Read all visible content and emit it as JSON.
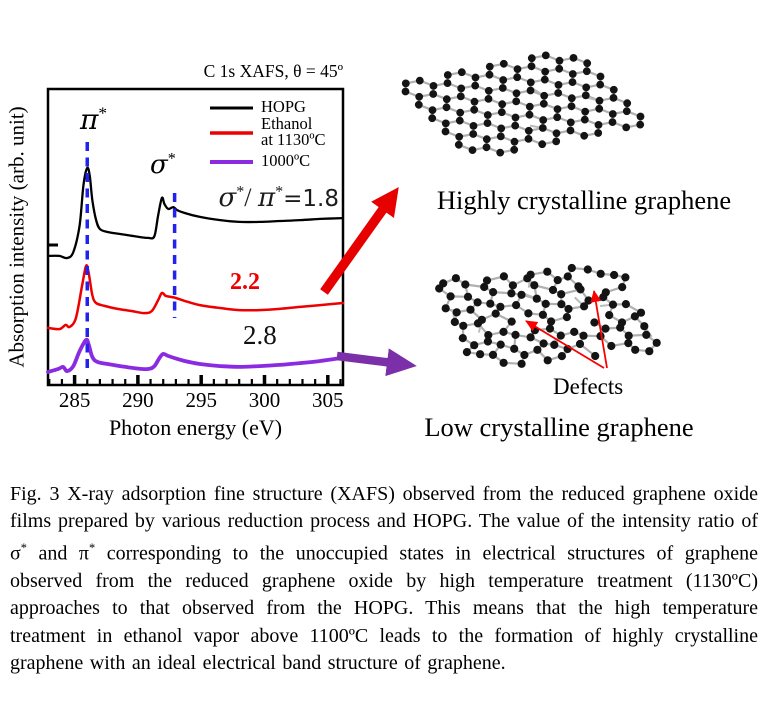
{
  "figure": {
    "colors": {
      "hopg": "#000000",
      "ethanol": "#ee0000",
      "low_temp": "#8a2be2",
      "guide_blue": "#2222ee",
      "arrow_red": "#e60000",
      "arrow_purple": "#7b2fa8",
      "defect_arrow": "#fa0000",
      "bond": "#b0b0b0",
      "atom": "#141414"
    },
    "plot": {
      "title": "C 1s XAFS, θ = 45º",
      "x_label": "Photon energy (eV)",
      "y_label": "Absorption intensity (arb. unit)",
      "legend": [
        {
          "label": "HOPG"
        },
        {
          "label": "Ethanol",
          "label2": "at 1130ºC"
        },
        {
          "label": "1000ºC"
        }
      ],
      "ann": {
        "pi": "π",
        "sigma": "σ",
        "star": "*",
        "slash": "/ ",
        "eq_value": "=1.8",
        "ratio_ethanol": "2.2",
        "ratio_1000": "2.8"
      }
    },
    "images": {
      "high": {
        "label": "Highly crystalline graphene"
      },
      "low": {
        "label": "Low crystalline graphene",
        "defects_label": "Defects"
      }
    }
  },
  "chart_data": {
    "type": "line",
    "title": "C 1s XAFS, θ = 45º",
    "xlabel": "Photon energy (eV)",
    "ylabel": "Absorption intensity (arb. unit)",
    "xlim": [
      282.9,
      306.2
    ],
    "x_ticks": [
      285,
      290,
      295,
      300,
      305
    ],
    "grid": false,
    "legend_position": "inside top-right",
    "y_units": "arbitrary units, curves vertically offset",
    "dashed_guides_eV": [
      286.0,
      292.9
    ],
    "peak_labels": {
      "pi_star_eV": 286.0,
      "sigma_star_eV": 292.9
    },
    "series": [
      {
        "name": "HOPG",
        "color": "#000000",
        "sigma_pi_ratio": 1.8,
        "x": [
          282.9,
          283.8,
          284.4,
          284.9,
          285.4,
          285.7,
          286.0,
          286.2,
          286.4,
          286.7,
          287.0,
          287.6,
          288.6,
          289.7,
          290.8,
          291.3,
          291.6,
          291.9,
          292.1,
          292.4,
          292.8,
          293.1,
          293.7,
          294.9,
          296.5,
          298.0,
          299.6,
          301.2,
          302.8,
          304.4,
          306.2
        ],
        "y": [
          0.436,
          0.436,
          0.429,
          0.449,
          0.541,
          0.676,
          0.733,
          0.706,
          0.625,
          0.557,
          0.527,
          0.517,
          0.51,
          0.503,
          0.497,
          0.503,
          0.574,
          0.632,
          0.611,
          0.595,
          0.601,
          0.591,
          0.581,
          0.568,
          0.557,
          0.551,
          0.551,
          0.554,
          0.557,
          0.561,
          0.564
        ]
      },
      {
        "name": "Ethanol at 1130ºC",
        "color": "#ee0000",
        "sigma_pi_ratio": 2.2,
        "x": [
          282.9,
          283.8,
          284.3,
          284.6,
          285.1,
          285.6,
          285.9,
          286.1,
          286.4,
          286.7,
          287.4,
          288.4,
          289.5,
          290.5,
          291.1,
          291.6,
          291.9,
          292.2,
          292.7,
          293.0,
          293.7,
          294.9,
          296.5,
          298.0,
          299.6,
          301.2,
          302.8,
          304.4,
          306.2
        ],
        "y": [
          0.193,
          0.189,
          0.203,
          0.196,
          0.226,
          0.338,
          0.402,
          0.382,
          0.304,
          0.277,
          0.267,
          0.257,
          0.25,
          0.243,
          0.25,
          0.287,
          0.311,
          0.301,
          0.297,
          0.294,
          0.284,
          0.27,
          0.26,
          0.253,
          0.253,
          0.257,
          0.264,
          0.27,
          0.277
        ]
      },
      {
        "name": "1000ºC",
        "color": "#8a2be2",
        "sigma_pi_ratio": 2.8,
        "x": [
          282.9,
          283.7,
          284.1,
          284.4,
          284.9,
          285.4,
          285.9,
          286.1,
          286.4,
          286.8,
          287.6,
          288.6,
          289.7,
          290.8,
          291.3,
          291.7,
          292.0,
          292.4,
          292.9,
          293.7,
          294.9,
          296.5,
          298.0,
          299.6,
          301.2,
          302.8,
          304.4,
          306.0
        ],
        "y": [
          0.044,
          0.054,
          0.061,
          0.047,
          0.064,
          0.115,
          0.152,
          0.139,
          0.095,
          0.078,
          0.071,
          0.064,
          0.057,
          0.054,
          0.064,
          0.091,
          0.105,
          0.098,
          0.091,
          0.081,
          0.071,
          0.064,
          0.061,
          0.064,
          0.068,
          0.074,
          0.081,
          0.091
        ]
      }
    ]
  },
  "caption": {
    "p1": "Fig. 3 X-ray adsorption fine structure (XAFS) observed from the reduced graphene oxide films prepared by various reduction process and HOPG. The value of the intensity ratio of σ",
    "sup1": "*",
    "p2": " and π",
    "sup2": "*",
    "p3": " corresponding to the unoccupied states in electrical structures of graphene observed from the reduced graphene oxide by high temperature treatment (1130ºC) approaches to that observed from the HOPG. This means that the high temperature treatment in ethanol vapor above 1100ºC leads to the formation of highly crystalline graphene with an ideal electrical band structure of graphene."
  }
}
